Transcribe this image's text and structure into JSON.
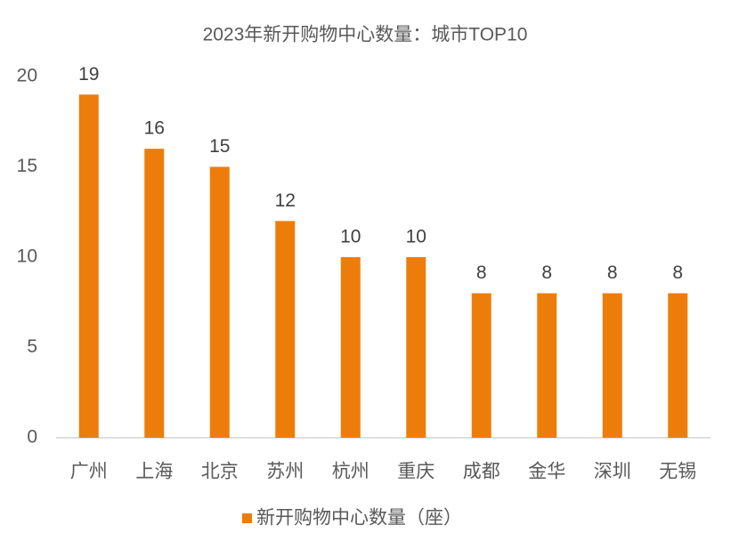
{
  "chart_data": {
    "type": "bar",
    "title": "2023年新开购物中心数量：城市TOP10",
    "categories": [
      "广州",
      "上海",
      "北京",
      "苏州",
      "杭州",
      "重庆",
      "成都",
      "金华",
      "深圳",
      "无锡"
    ],
    "series": [
      {
        "name": "新开购物中心数量（座）",
        "color": "#ed7d0a",
        "values": [
          19,
          16,
          15,
          12,
          10,
          10,
          8,
          8,
          8,
          8
        ]
      }
    ],
    "ylim": [
      0,
      20
    ],
    "yticks": [
      0,
      5,
      10,
      15,
      20
    ],
    "grid": false,
    "legend": "bottom",
    "data_labels": true
  }
}
